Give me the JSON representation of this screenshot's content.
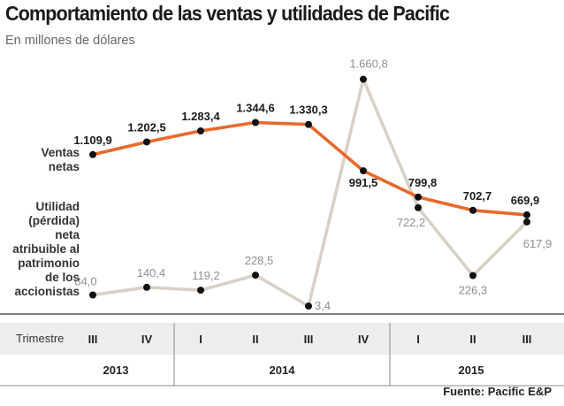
{
  "title": "Comportamiento de las ventas y utilidades de Pacific",
  "subtitle": "En millones de dólares",
  "source": "Fuente: Pacific E&P",
  "chart_data": {
    "type": "line",
    "title": "Comportamiento de las ventas y utilidades de Pacific",
    "ylabel": "En millones de dólares",
    "categories": [
      "2013 III",
      "2013 IV",
      "2014 I",
      "2014 II",
      "2014 III",
      "2014 IV",
      "2015 I",
      "2015 II",
      "2015 III"
    ],
    "axis_row_label": "Trimestre",
    "quarters": [
      "III",
      "IV",
      "I",
      "II",
      "III",
      "IV",
      "I",
      "II",
      "III"
    ],
    "years": [
      {
        "label": "2013",
        "span": 2
      },
      {
        "label": "2014",
        "span": 4
      },
      {
        "label": "2015",
        "span": 3
      }
    ],
    "ylim": [
      0,
      1700
    ],
    "series": [
      {
        "name": "Ventas netas",
        "color": "#e8692a",
        "values": [
          1109.9,
          1202.5,
          1283.4,
          1344.6,
          1330.3,
          991.5,
          799.8,
          702.7,
          669.9
        ],
        "labels": [
          "1.109,9",
          "1.202,5",
          "1.283,4",
          "1.344,6",
          "1.330,3",
          "991,5",
          "799,8",
          "702,7",
          "669,9"
        ]
      },
      {
        "name": "Utilidad (pérdida) neta atribuible al patrimonio de los accionistas",
        "color": "#d9d0c6",
        "values": [
          84.0,
          140.4,
          119.2,
          228.5,
          3.4,
          1660.8,
          722.2,
          226.3,
          617.9
        ],
        "labels": [
          "84,0",
          "140,4",
          "119,2",
          "228,5",
          "3,4",
          "1.660,8",
          "722,2",
          "226,3",
          "617,9"
        ]
      }
    ]
  },
  "series_labels": {
    "ventas": [
      "Ventas",
      "netas"
    ],
    "utilidad": [
      "Utilidad",
      "(pérdida)",
      "neta",
      "atribuible al",
      "patrimonio",
      "de los",
      "accionistas"
    ]
  }
}
